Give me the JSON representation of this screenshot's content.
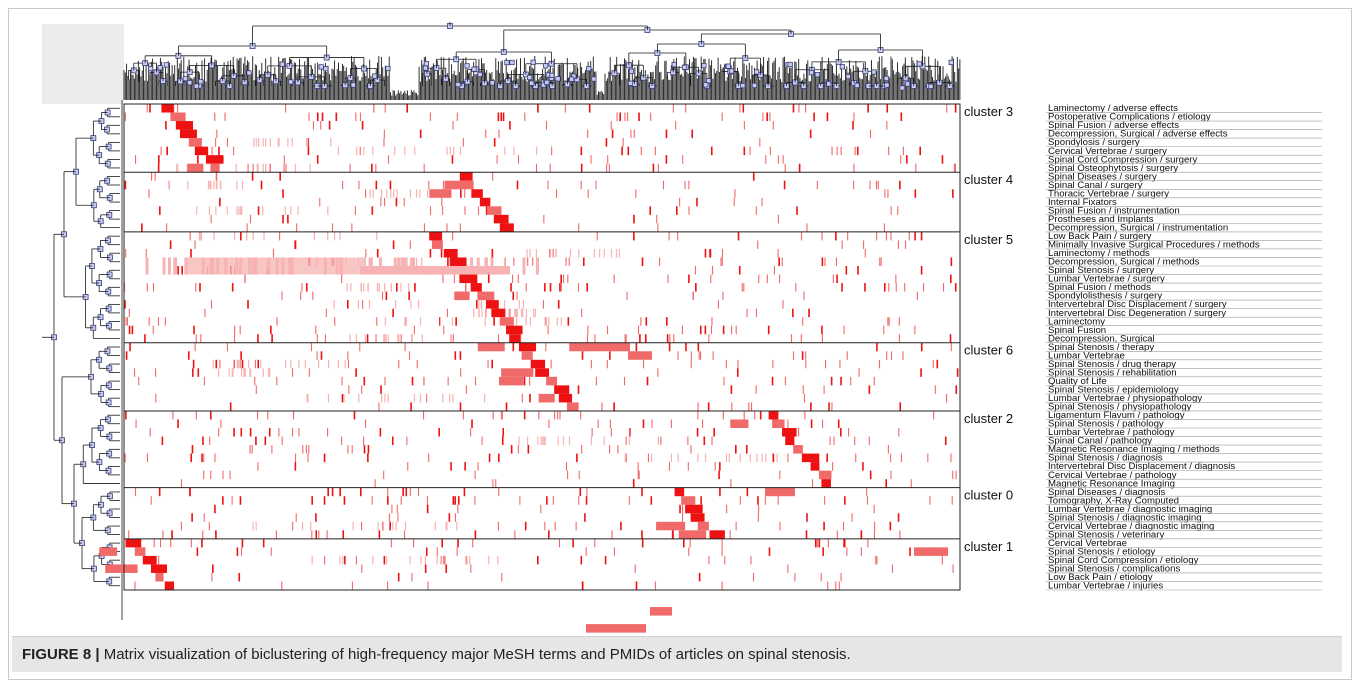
{
  "figure": {
    "caption_label": "FIGURE 8 |",
    "caption_text": " Matrix visualization of biclustering of high-frequency major MeSH terms and PMIDs of articles on spinal stenosis."
  },
  "clusters": [
    {
      "name": "cluster 3",
      "terms": [
        "Laminectomy / adverse effects",
        "Postoperative Complications / etiology",
        "Spinal Fusion / adverse effects",
        "Decompression, Surgical / adverse effects",
        "Spondylosis / surgery",
        "Cervical Vertebrae / surgery",
        "Spinal Cord Compression / surgery",
        "Spinal Osteophytosis / surgery"
      ]
    },
    {
      "name": "cluster 4",
      "terms": [
        "Spinal Diseases / surgery",
        "Spinal Canal / surgery",
        "Thoracic Vertebrae / surgery",
        "Internal Fixators",
        "Spinal Fusion / instrumentation",
        "Prostheses and Implants",
        "Decompression, Surgical / instrumentation"
      ]
    },
    {
      "name": "cluster 5",
      "terms": [
        "Low Back Pain / surgery",
        "Minimally Invasive Surgical Procedures / methods",
        "Laminectomy / methods",
        "Decompression, Surgical / methods",
        "Spinal Stenosis / surgery",
        "Lumbar Vertebrae / surgery",
        "Spinal Fusion / methods",
        "Spondylolisthesis / surgery",
        "Intervertebral Disc Displacement / surgery",
        "Intervertebral Disc Degeneration / surgery",
        "Laminectomy",
        "Spinal Fusion",
        "Decompression, Surgical"
      ]
    },
    {
      "name": "cluster 6",
      "terms": [
        "Spinal Stenosis / therapy",
        "Lumbar Vertebrae",
        "Spinal Stenosis / drug therapy",
        "Spinal Stenosis / rehabilitation",
        "Quality of Life",
        "Spinal Stenosis / epidemiology",
        "Lumbar Vertebrae / physiopathology",
        "Spinal Stenosis / physiopathology"
      ]
    },
    {
      "name": "cluster 2",
      "terms": [
        "Ligamentum Flavum / pathology",
        "Spinal Stenosis / pathology",
        "Lumbar Vertebrae / pathology",
        "Spinal Canal / pathology",
        "Magnetic Resonance Imaging / methods",
        "Spinal Stenosis / diagnosis",
        "Intervertebral Disc Displacement / diagnosis",
        "Cervical Vertebrae / pathology",
        "Magnetic Resonance Imaging"
      ]
    },
    {
      "name": "cluster 0",
      "terms": [
        "Spinal Diseases / diagnosis",
        "Tomography, X-Ray Computed",
        "Lumbar Vertebrae / diagnostic imaging",
        "Spinal Stenosis / diagnostic imaging",
        "Cervical Vertebrae / diagnostic imaging",
        "Spinal Stenosis / veterinary"
      ]
    },
    {
      "name": "cluster 1",
      "terms": [
        "Cervical Vertebrae",
        "Spinal Stenosis / etiology",
        "Spinal Cord Compression / etiology",
        "Spinal Stenosis / complications",
        "Low Back Pain / etiology",
        "Lumbar Vertebrae / injuries"
      ]
    }
  ],
  "colors": {
    "strong": "#ee1111",
    "medium": "#f06a6a",
    "light": "#f7b3b3",
    "grid": "#222222",
    "dendrogram_line": "#1a1a1a",
    "dendrogram_node_fill": "#c8ccf0",
    "dendrogram_node_stroke": "#3a3f7a",
    "corner_box": "#ececec"
  }
}
